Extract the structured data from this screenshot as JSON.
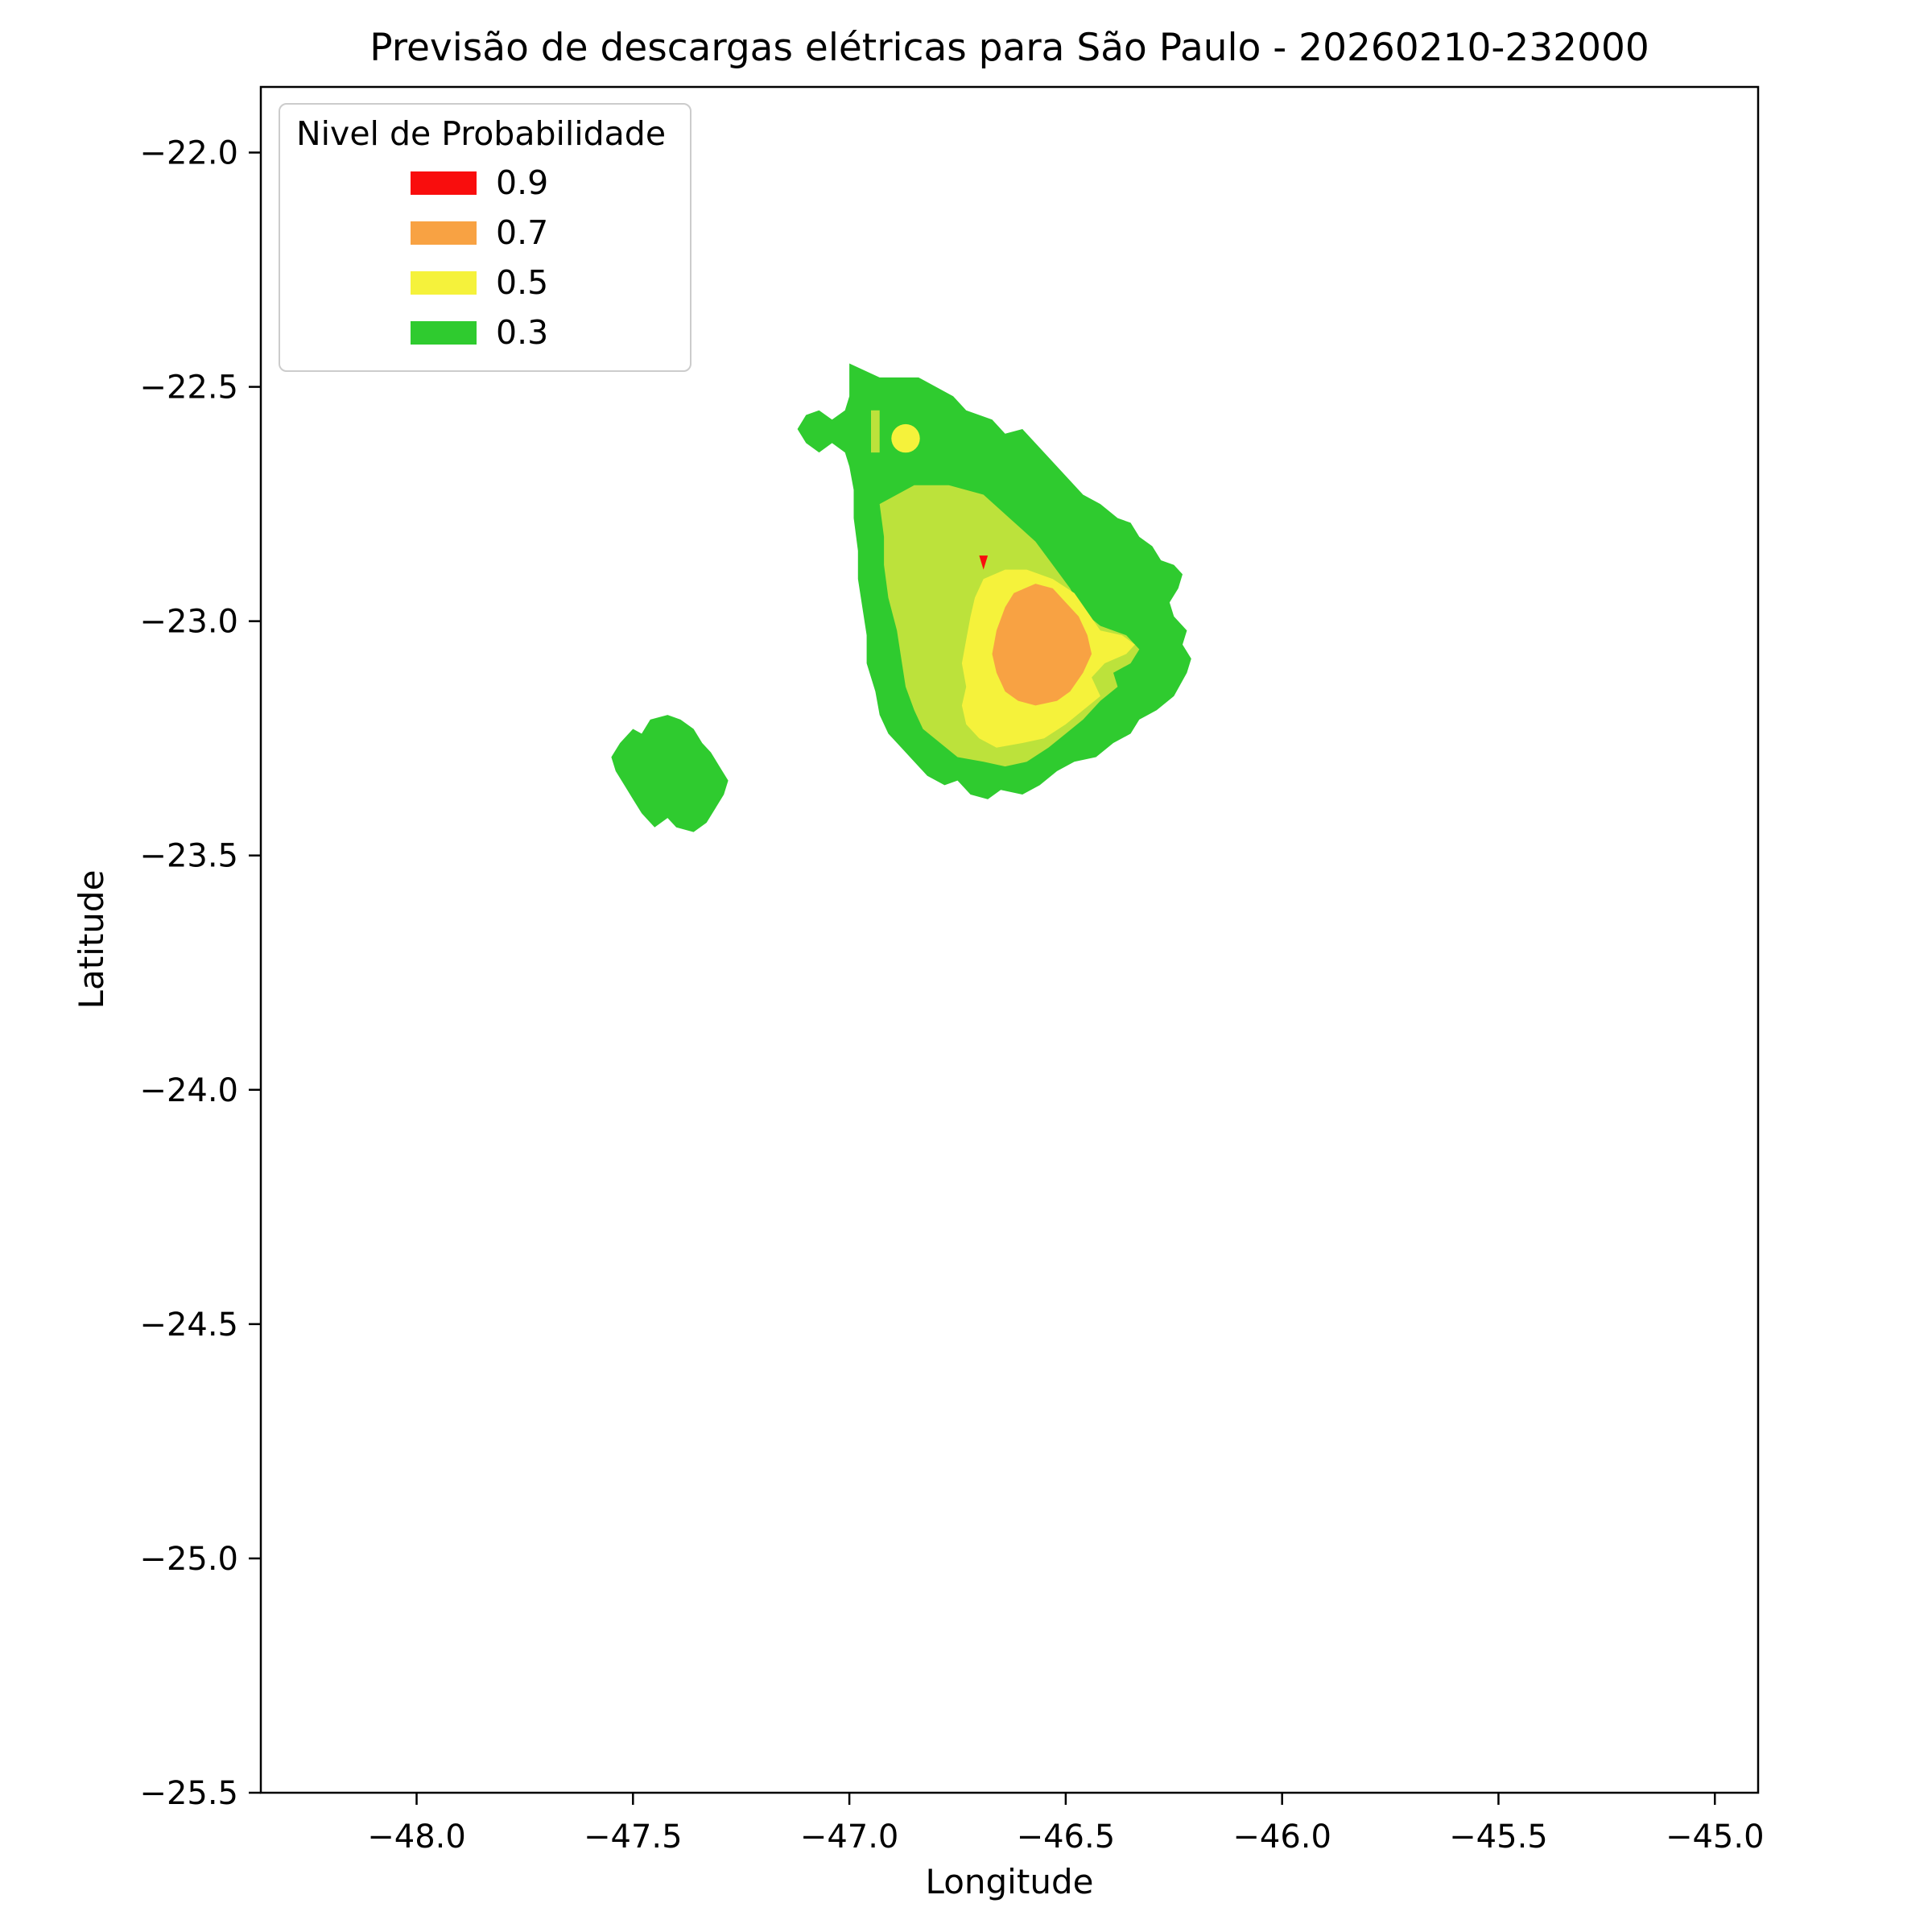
{
  "chart_data": {
    "type": "filled-contour-map",
    "title": "Previsão de descargas elétricas para São Paulo - 20260210-232000",
    "xlabel": "Longitude",
    "ylabel": "Latitude",
    "background": "#ffffff",
    "grid": false,
    "axes": {
      "xlim": [
        -48.36,
        -44.9
      ],
      "ylim": [
        -25.5,
        -21.86
      ],
      "x_ticks": [
        -48.0,
        -47.5,
        -47.0,
        -46.5,
        -46.0,
        -45.5,
        -45.0
      ],
      "x_tick_labels": [
        "−48.0",
        "−47.5",
        "−47.0",
        "−46.5",
        "−46.0",
        "−45.5",
        "−45.0"
      ],
      "y_ticks": [
        -22.0,
        -22.5,
        -23.0,
        -23.5,
        -24.0,
        -24.5,
        -25.0,
        -25.5
      ],
      "y_tick_labels": [
        "−22.0",
        "−22.5",
        "−23.0",
        "−23.5",
        "−24.0",
        "−24.5",
        "−25.0",
        "−25.5"
      ]
    },
    "legend": {
      "title": "Nivel de Probabilidade",
      "position": "upper-left",
      "entries": [
        {
          "label": "0.9",
          "color": "#F90D0D"
        },
        {
          "label": "0.7",
          "color": "#F8A243"
        },
        {
          "label": "0.5",
          "color": "#F5F23B"
        },
        {
          "label": "0.3",
          "color": "#2FCB2F"
        }
      ]
    },
    "regions": [
      {
        "name": "prob-0.3-main-cell",
        "level": 0.3,
        "color": "#2FCB2F",
        "points": [
          [
            -47.0,
            -22.45
          ],
          [
            -46.93,
            -22.48
          ],
          [
            -46.84,
            -22.48
          ],
          [
            -46.76,
            -22.52
          ],
          [
            -46.73,
            -22.55
          ],
          [
            -46.67,
            -22.57
          ],
          [
            -46.64,
            -22.6
          ],
          [
            -46.6,
            -22.59
          ],
          [
            -46.56,
            -22.63
          ],
          [
            -46.51,
            -22.68
          ],
          [
            -46.46,
            -22.73
          ],
          [
            -46.42,
            -22.75
          ],
          [
            -46.38,
            -22.78
          ],
          [
            -46.35,
            -22.79
          ],
          [
            -46.33,
            -22.82
          ],
          [
            -46.3,
            -22.84
          ],
          [
            -46.28,
            -22.87
          ],
          [
            -46.25,
            -22.88
          ],
          [
            -46.23,
            -22.9
          ],
          [
            -46.24,
            -22.93
          ],
          [
            -46.26,
            -22.96
          ],
          [
            -46.25,
            -22.99
          ],
          [
            -46.22,
            -23.02
          ],
          [
            -46.23,
            -23.05
          ],
          [
            -46.21,
            -23.08
          ],
          [
            -46.22,
            -23.11
          ],
          [
            -46.25,
            -23.16
          ],
          [
            -46.29,
            -23.19
          ],
          [
            -46.33,
            -23.21
          ],
          [
            -46.35,
            -23.24
          ],
          [
            -46.39,
            -23.26
          ],
          [
            -46.43,
            -23.29
          ],
          [
            -46.48,
            -23.3
          ],
          [
            -46.52,
            -23.32
          ],
          [
            -46.56,
            -23.35
          ],
          [
            -46.6,
            -23.37
          ],
          [
            -46.65,
            -23.36
          ],
          [
            -46.68,
            -23.38
          ],
          [
            -46.72,
            -23.37
          ],
          [
            -46.75,
            -23.34
          ],
          [
            -46.78,
            -23.35
          ],
          [
            -46.82,
            -23.33
          ],
          [
            -46.85,
            -23.3
          ],
          [
            -46.88,
            -23.27
          ],
          [
            -46.91,
            -23.24
          ],
          [
            -46.93,
            -23.2
          ],
          [
            -46.94,
            -23.15
          ],
          [
            -46.96,
            -23.09
          ],
          [
            -46.96,
            -23.03
          ],
          [
            -46.97,
            -22.97
          ],
          [
            -46.98,
            -22.91
          ],
          [
            -46.98,
            -22.85
          ],
          [
            -46.99,
            -22.78
          ],
          [
            -46.99,
            -22.72
          ],
          [
            -47.0,
            -22.67
          ],
          [
            -47.01,
            -22.64
          ],
          [
            -47.04,
            -22.62
          ],
          [
            -47.07,
            -22.64
          ],
          [
            -47.1,
            -22.62
          ],
          [
            -47.12,
            -22.59
          ],
          [
            -47.1,
            -22.56
          ],
          [
            -47.07,
            -22.55
          ],
          [
            -47.04,
            -22.57
          ],
          [
            -47.01,
            -22.55
          ],
          [
            -47.0,
            -22.52
          ],
          [
            -47.0,
            -22.48
          ]
        ]
      },
      {
        "name": "prob-0.3-southwest-cell",
        "level": 0.3,
        "color": "#2FCB2F",
        "points": [
          [
            -47.53,
            -23.26
          ],
          [
            -47.5,
            -23.23
          ],
          [
            -47.48,
            -23.24
          ],
          [
            -47.46,
            -23.21
          ],
          [
            -47.42,
            -23.2
          ],
          [
            -47.39,
            -23.21
          ],
          [
            -47.36,
            -23.23
          ],
          [
            -47.34,
            -23.26
          ],
          [
            -47.32,
            -23.28
          ],
          [
            -47.3,
            -23.31
          ],
          [
            -47.28,
            -23.34
          ],
          [
            -47.29,
            -23.37
          ],
          [
            -47.31,
            -23.4
          ],
          [
            -47.33,
            -23.43
          ],
          [
            -47.36,
            -23.45
          ],
          [
            -47.4,
            -23.44
          ],
          [
            -47.42,
            -23.42
          ],
          [
            -47.45,
            -23.44
          ],
          [
            -47.48,
            -23.41
          ],
          [
            -47.5,
            -23.38
          ],
          [
            -47.52,
            -23.35
          ],
          [
            -47.54,
            -23.32
          ],
          [
            -47.55,
            -23.29
          ]
        ]
      },
      {
        "name": "prob-0.4-top-sliver",
        "level": 0.4,
        "color": "#BCE23B",
        "points": [
          [
            -46.95,
            -22.55
          ],
          [
            -46.93,
            -22.55
          ],
          [
            -46.93,
            -22.64
          ],
          [
            -46.95,
            -22.64
          ]
        ]
      },
      {
        "name": "prob-0.4-inner",
        "level": 0.4,
        "color": "#BCE23B",
        "points": [
          [
            -46.93,
            -22.75
          ],
          [
            -46.85,
            -22.71
          ],
          [
            -46.77,
            -22.71
          ],
          [
            -46.69,
            -22.73
          ],
          [
            -46.63,
            -22.78
          ],
          [
            -46.57,
            -22.83
          ],
          [
            -46.53,
            -22.88
          ],
          [
            -46.49,
            -22.93
          ],
          [
            -46.46,
            -22.98
          ],
          [
            -46.42,
            -23.01
          ],
          [
            -46.36,
            -23.03
          ],
          [
            -46.33,
            -23.06
          ],
          [
            -46.35,
            -23.09
          ],
          [
            -46.39,
            -23.11
          ],
          [
            -46.38,
            -23.14
          ],
          [
            -46.42,
            -23.17
          ],
          [
            -46.46,
            -23.21
          ],
          [
            -46.5,
            -23.24
          ],
          [
            -46.54,
            -23.27
          ],
          [
            -46.59,
            -23.3
          ],
          [
            -46.64,
            -23.31
          ],
          [
            -46.69,
            -23.3
          ],
          [
            -46.75,
            -23.29
          ],
          [
            -46.79,
            -23.26
          ],
          [
            -46.83,
            -23.23
          ],
          [
            -46.85,
            -23.19
          ],
          [
            -46.87,
            -23.14
          ],
          [
            -46.88,
            -23.08
          ],
          [
            -46.89,
            -23.02
          ],
          [
            -46.91,
            -22.95
          ],
          [
            -46.92,
            -22.88
          ],
          [
            -46.92,
            -22.82
          ]
        ]
      },
      {
        "name": "prob-0.5-mid",
        "level": 0.5,
        "color": "#F5F23B",
        "points": [
          [
            -46.69,
            -22.91
          ],
          [
            -46.64,
            -22.89
          ],
          [
            -46.59,
            -22.89
          ],
          [
            -46.53,
            -22.91
          ],
          [
            -46.48,
            -22.94
          ],
          [
            -46.45,
            -22.98
          ],
          [
            -46.42,
            -23.02
          ],
          [
            -46.37,
            -23.03
          ],
          [
            -46.34,
            -23.05
          ],
          [
            -46.36,
            -23.07
          ],
          [
            -46.41,
            -23.09
          ],
          [
            -46.44,
            -23.12
          ],
          [
            -46.42,
            -23.16
          ],
          [
            -46.46,
            -23.19
          ],
          [
            -46.5,
            -23.22
          ],
          [
            -46.55,
            -23.25
          ],
          [
            -46.6,
            -23.26
          ],
          [
            -46.66,
            -23.27
          ],
          [
            -46.7,
            -23.25
          ],
          [
            -46.73,
            -23.22
          ],
          [
            -46.74,
            -23.18
          ],
          [
            -46.73,
            -23.14
          ],
          [
            -46.74,
            -23.09
          ],
          [
            -46.73,
            -23.04
          ],
          [
            -46.72,
            -22.99
          ],
          [
            -46.71,
            -22.95
          ]
        ]
      },
      {
        "name": "prob-0.7-core",
        "level": 0.7,
        "color": "#F8A243",
        "points": [
          [
            -46.62,
            -22.94
          ],
          [
            -46.57,
            -22.92
          ],
          [
            -46.53,
            -22.93
          ],
          [
            -46.5,
            -22.96
          ],
          [
            -46.47,
            -22.99
          ],
          [
            -46.45,
            -23.03
          ],
          [
            -46.44,
            -23.07
          ],
          [
            -46.46,
            -23.11
          ],
          [
            -46.49,
            -23.15
          ],
          [
            -46.52,
            -23.17
          ],
          [
            -46.57,
            -23.18
          ],
          [
            -46.61,
            -23.17
          ],
          [
            -46.64,
            -23.15
          ],
          [
            -46.66,
            -23.11
          ],
          [
            -46.67,
            -23.07
          ],
          [
            -46.66,
            -23.02
          ],
          [
            -46.64,
            -22.97
          ]
        ]
      },
      {
        "name": "prob-0.9-speck",
        "level": 0.9,
        "color": "#F90D0D",
        "points": [
          [
            -46.7,
            -22.86
          ],
          [
            -46.68,
            -22.86
          ],
          [
            -46.69,
            -22.89
          ]
        ]
      }
    ],
    "markers": [
      {
        "name": "yellow-dot",
        "type": "circle",
        "level": 0.5,
        "color": "#F5F23B",
        "center": [
          -46.87,
          -22.61
        ],
        "radius_deg": 0.033
      }
    ]
  }
}
